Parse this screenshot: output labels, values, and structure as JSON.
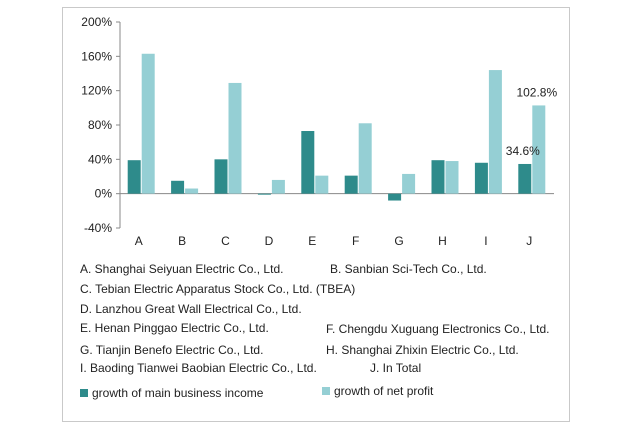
{
  "chart_data": {
    "type": "bar",
    "categories": [
      "A",
      "B",
      "C",
      "D",
      "E",
      "F",
      "G",
      "H",
      "I",
      "J"
    ],
    "series": [
      {
        "name": "growth of main business income",
        "color": "#2e8b8b",
        "values": [
          39,
          15,
          40,
          0,
          73,
          21,
          -8,
          39,
          36,
          34.6
        ]
      },
      {
        "name": "growth of net profit",
        "color": "#95cfd4",
        "values": [
          163,
          6,
          129,
          16,
          21,
          82,
          23,
          38,
          144,
          102.8
        ]
      }
    ],
    "ylim": [
      -40,
      200
    ],
    "yticks": [
      "200%",
      "160%",
      "120%",
      "80%",
      "40%",
      "0%",
      "-40%"
    ],
    "yticks_values": [
      200,
      160,
      120,
      80,
      40,
      0,
      -40
    ],
    "data_labels": [
      {
        "category": "J",
        "series": 0,
        "text": "34.6%"
      },
      {
        "category": "J",
        "series": 1,
        "text": "102.8%"
      }
    ],
    "grid": false,
    "legend": "bottom"
  },
  "notes": [
    [
      "A. Shanghai Seiyuan Electric Co., Ltd.",
      "B. Sanbian Sci-Tech Co., Ltd."
    ],
    [
      "C. Tebian Electric Apparatus Stock Co., Ltd.   (TBEA)"
    ],
    [
      "D. Lanzhou Great Wall Electrical Co., Ltd."
    ],
    [
      "E. Henan Pinggao Electric Co., Ltd.",
      "F. Chengdu Xuguang Electronics Co., Ltd."
    ],
    [
      "G. Tianjin Benefo Electric Co., Ltd.",
      "H. Shanghai Zhixin Electric Co., Ltd."
    ],
    [
      "I. Baoding Tianwei Baobian Electric Co., Ltd.",
      "J. In Total"
    ]
  ],
  "legend": [
    {
      "label": "growth of main business income",
      "color": "#2e8b8b"
    },
    {
      "label": "growth of net profit",
      "color": "#95cfd4"
    }
  ]
}
